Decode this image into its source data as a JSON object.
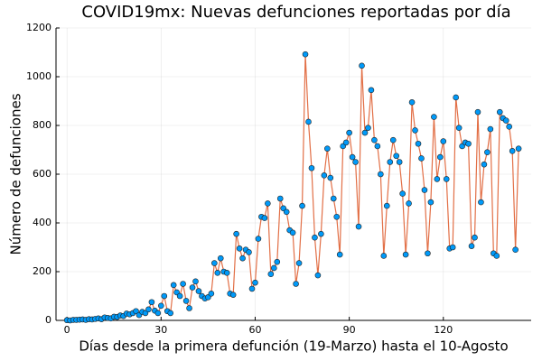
{
  "chart_data": {
    "type": "line",
    "title": "COVID19mx: Nuevas defunciones reportadas por día",
    "xlabel": "Días desde la primera defunción (19-Marzo) hasta el 10-Agosto",
    "ylabel": "Número de defunciones",
    "x": [
      0,
      1,
      2,
      3,
      4,
      5,
      6,
      7,
      8,
      9,
      10,
      11,
      12,
      13,
      14,
      15,
      16,
      17,
      18,
      19,
      20,
      21,
      22,
      23,
      24,
      25,
      26,
      27,
      28,
      29,
      30,
      31,
      32,
      33,
      34,
      35,
      36,
      37,
      38,
      39,
      40,
      41,
      42,
      43,
      44,
      45,
      46,
      47,
      48,
      49,
      50,
      51,
      52,
      53,
      54,
      55,
      56,
      57,
      58,
      59,
      60,
      61,
      62,
      63,
      64,
      65,
      66,
      67,
      68,
      69,
      70,
      71,
      72,
      73,
      74,
      75,
      76,
      77,
      78,
      79,
      80,
      81,
      82,
      83,
      84,
      85,
      86,
      87,
      88,
      89,
      90,
      91,
      92,
      93,
      94,
      95,
      96,
      97,
      98,
      99,
      100,
      101,
      102,
      103,
      104,
      105,
      106,
      107,
      108,
      109,
      110,
      111,
      112,
      113,
      114,
      115,
      116,
      117,
      118,
      119,
      120,
      121,
      122,
      123,
      124,
      125,
      126,
      127,
      128,
      129,
      130,
      131,
      132,
      133,
      134,
      135,
      136,
      137,
      138,
      139,
      140,
      141,
      142,
      143,
      144
    ],
    "values": [
      1,
      0,
      2,
      2,
      3,
      4,
      2,
      5,
      4,
      6,
      8,
      5,
      12,
      10,
      8,
      15,
      14,
      20,
      18,
      28,
      25,
      30,
      38,
      22,
      35,
      30,
      45,
      75,
      40,
      30,
      60,
      100,
      38,
      30,
      145,
      115,
      100,
      150,
      80,
      50,
      135,
      160,
      120,
      100,
      90,
      95,
      110,
      235,
      195,
      255,
      200,
      195,
      110,
      105,
      355,
      295,
      255,
      290,
      280,
      130,
      155,
      335,
      425,
      420,
      480,
      190,
      215,
      240,
      500,
      460,
      445,
      370,
      360,
      150,
      235,
      470,
      1092,
      815,
      625,
      340,
      185,
      355,
      595,
      705,
      585,
      500,
      425,
      270,
      715,
      730,
      770,
      670,
      650,
      385,
      1045,
      770,
      790,
      945,
      740,
      715,
      600,
      265,
      470,
      650,
      740,
      675,
      650,
      520,
      270,
      480,
      895,
      780,
      725,
      665,
      535,
      275,
      485,
      835,
      580,
      670,
      735,
      580,
      295,
      300,
      915,
      790,
      715,
      730,
      725,
      305,
      340,
      855,
      485,
      640,
      690,
      785,
      275,
      265,
      855,
      830,
      820,
      795,
      695,
      290,
      705
    ],
    "color": "#e26f46",
    "marker_color": "#009af9",
    "xlim": [
      -3.5,
      148
    ],
    "xticks": [
      0,
      30,
      60,
      90,
      120
    ],
    "ylim": [
      0,
      1200
    ],
    "yticks": [
      0,
      200,
      400,
      600,
      800,
      1000,
      1200
    ],
    "grid": true
  }
}
